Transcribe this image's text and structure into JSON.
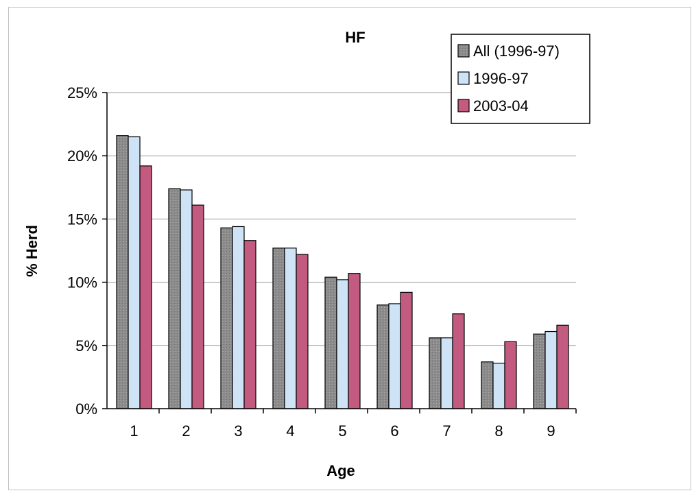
{
  "chart_data": {
    "type": "bar",
    "title": "HF",
    "xlabel": "Age",
    "ylabel": "% Herd",
    "categories": [
      "1",
      "2",
      "3",
      "4",
      "5",
      "6",
      "7",
      "8",
      "9"
    ],
    "series": [
      {
        "name": "All (1996-97)",
        "color": "#8c8c8c",
        "values": [
          21.6,
          17.4,
          14.3,
          12.7,
          10.4,
          8.2,
          5.6,
          3.7,
          5.9
        ]
      },
      {
        "name": "1996-97",
        "color": "#cfe3f7",
        "values": [
          21.5,
          17.3,
          14.4,
          12.7,
          10.2,
          8.3,
          5.6,
          3.6,
          6.1
        ]
      },
      {
        "name": "2003-04",
        "color": "#c35a7f",
        "values": [
          19.2,
          16.1,
          13.3,
          12.2,
          10.7,
          9.2,
          7.5,
          5.3,
          6.6
        ]
      }
    ],
    "yticks": [
      "0%",
      "5%",
      "10%",
      "15%",
      "20%",
      "25%"
    ],
    "ylim": [
      0,
      25
    ],
    "grid": true,
    "legend_position": "top-right"
  }
}
